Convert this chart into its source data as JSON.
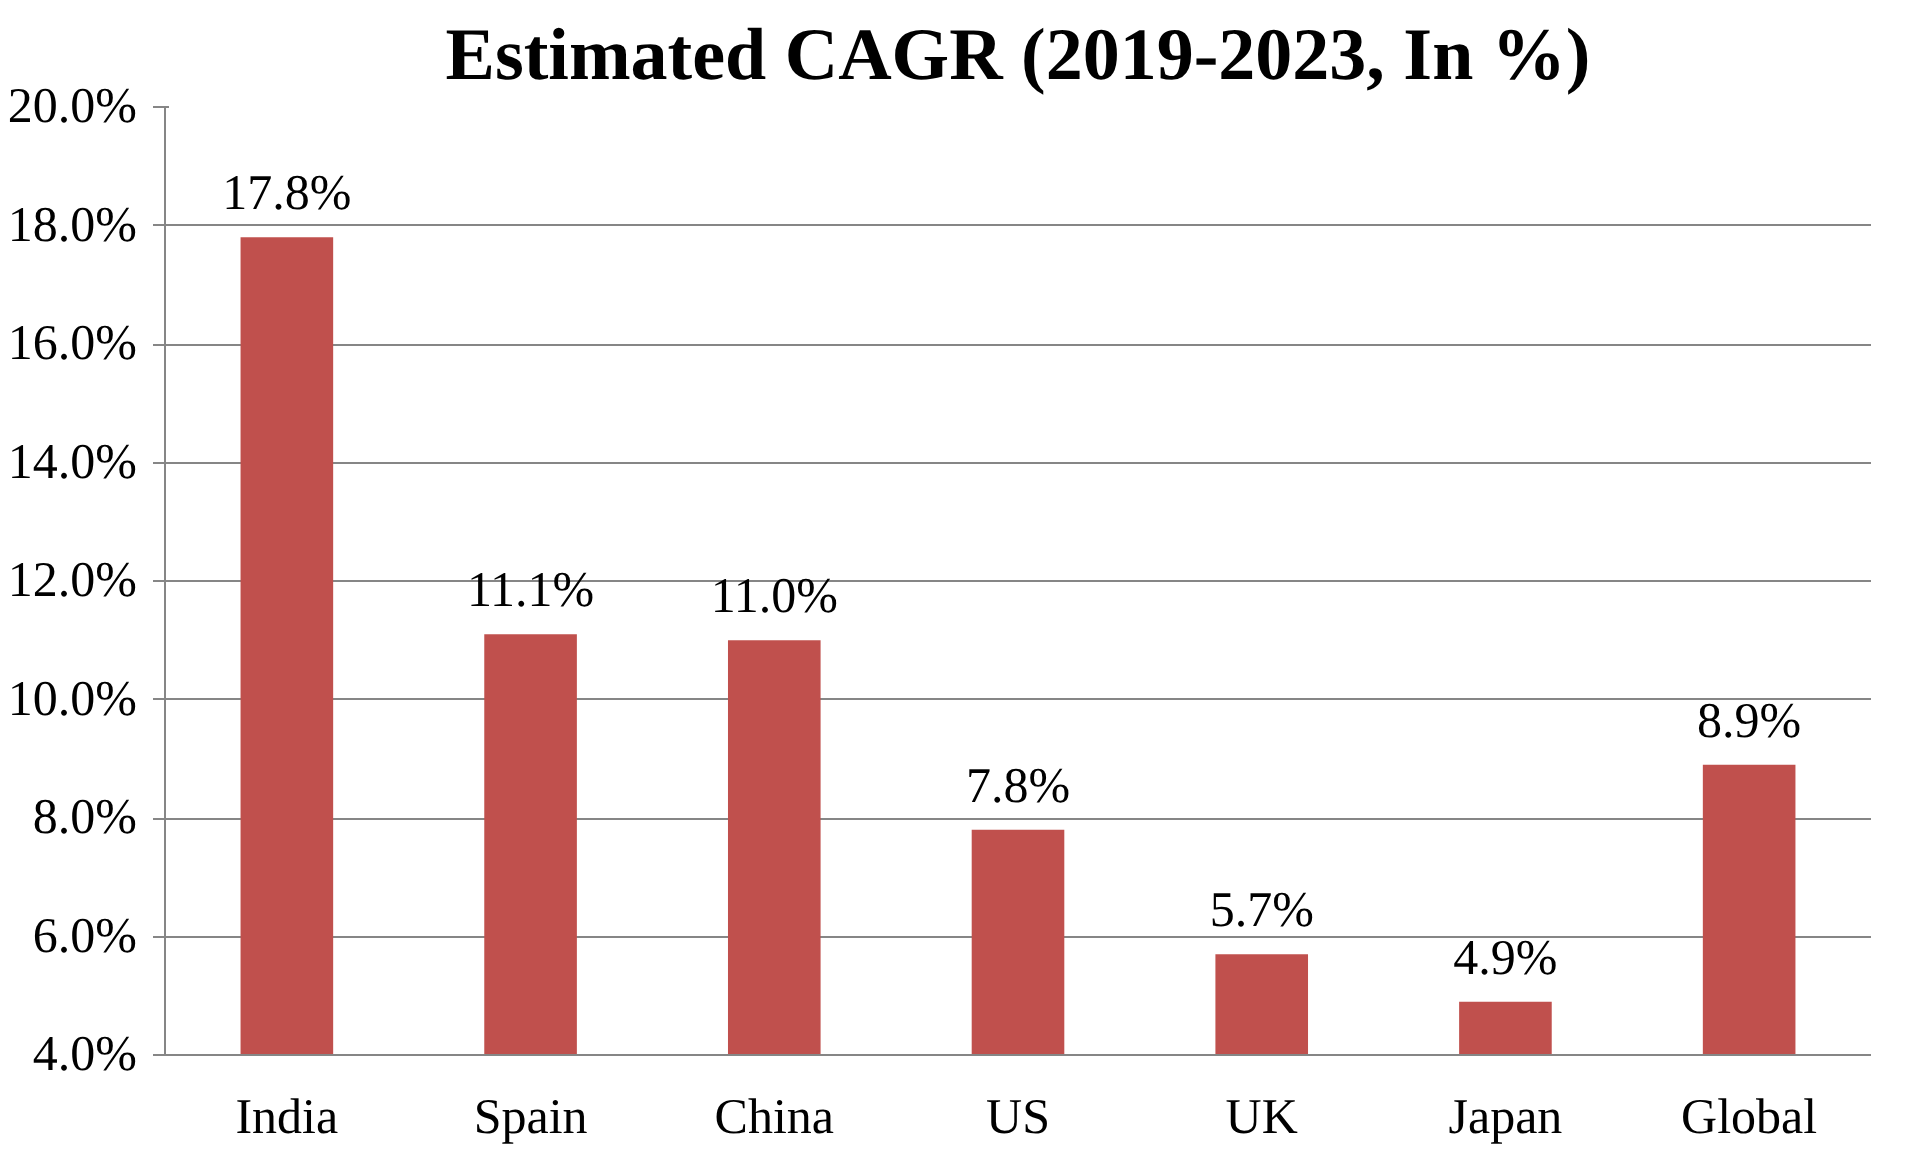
{
  "chart_data": {
    "type": "bar",
    "title": "Estimated CAGR (2019-2023, In %)",
    "categories": [
      "India",
      "Spain",
      "China",
      "US",
      "UK",
      "Japan",
      "Global"
    ],
    "values": [
      17.8,
      11.1,
      11.0,
      7.8,
      5.7,
      4.9,
      8.9
    ],
    "value_labels": [
      "17.8%",
      "11.1%",
      "11.0%",
      "7.8%",
      "5.7%",
      "4.9%",
      "8.9%"
    ],
    "color": "#c0504d",
    "ylim": [
      4,
      20
    ],
    "yticks": [
      {
        "value": 4,
        "label": "4.0%"
      },
      {
        "value": 6,
        "label": "6.0%"
      },
      {
        "value": 8,
        "label": "8.0%"
      },
      {
        "value": 10,
        "label": "10.0%"
      },
      {
        "value": 12,
        "label": "12.0%"
      },
      {
        "value": 14,
        "label": "14.0%"
      },
      {
        "value": 16,
        "label": "16.0%"
      },
      {
        "value": 18,
        "label": "18.0%"
      },
      {
        "value": 20,
        "label": "20.0%"
      }
    ],
    "grid": "y"
  }
}
